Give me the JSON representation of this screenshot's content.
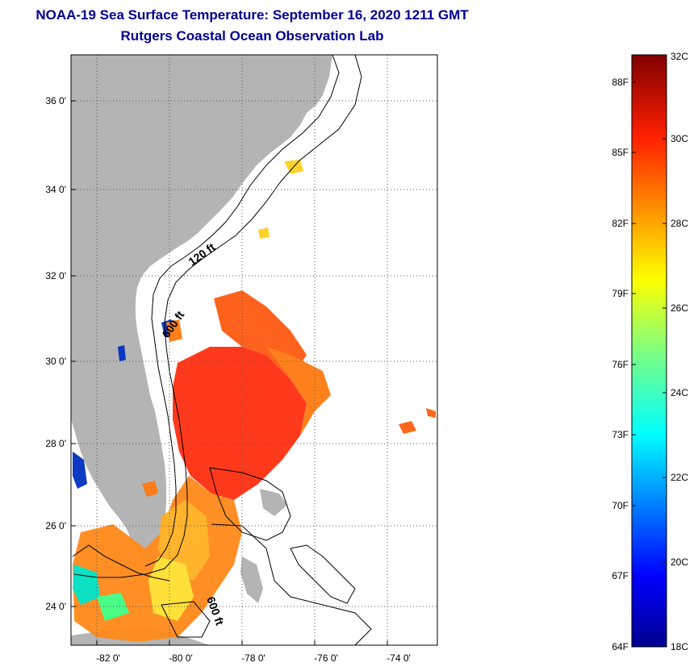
{
  "header": {
    "title": "NOAA-19 Sea Surface Temperature:  September 16, 2020 1211 GMT",
    "subtitle": "Rutgers Coastal Ocean Observation Lab"
  },
  "map": {
    "lat_labels": [
      "36 0'",
      "34 0'",
      "32 0'",
      "30 0'",
      "28 0'",
      "26 0'",
      "24 0'"
    ],
    "lon_labels": [
      "-82 0'",
      "-80 0'",
      "-78 0'",
      "-76 0'",
      "-74 0'"
    ],
    "contour_labels": [
      "120 ft",
      "600 ft",
      "600 ft"
    ],
    "colors": {
      "land": "#b4b4b4",
      "ocean_cloud": "#ffffff"
    }
  },
  "colorbar": {
    "fahrenheit_labels": [
      "88F",
      "85F",
      "82F",
      "79F",
      "76F",
      "73F",
      "70F",
      "67F",
      "64F"
    ],
    "celsius_labels": [
      "32C",
      "30C",
      "28C",
      "26C",
      "24C",
      "22C",
      "20C",
      "18C"
    ],
    "min_c": 18,
    "max_c": 32
  }
}
